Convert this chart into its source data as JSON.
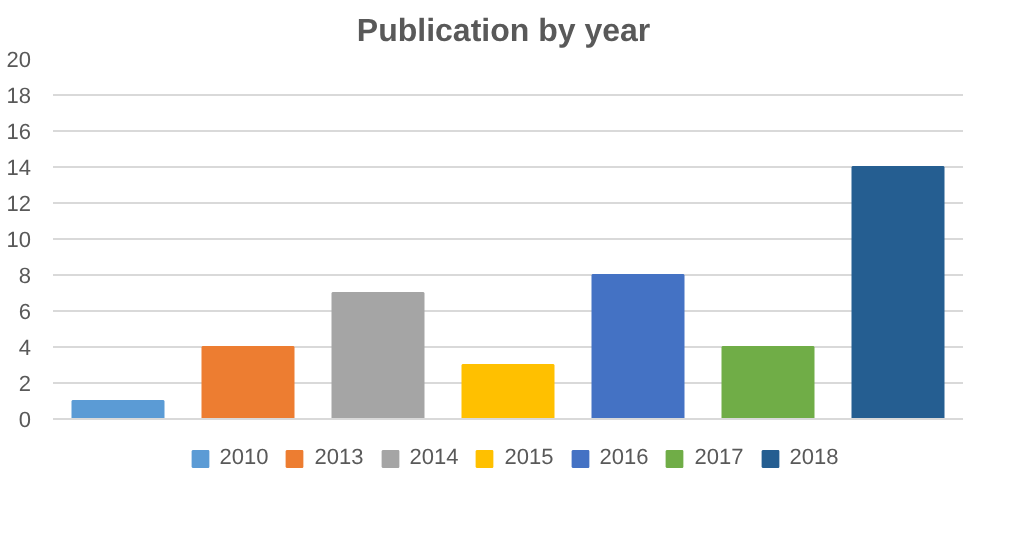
{
  "chart_data": {
    "type": "bar",
    "title": "Publication  by year",
    "categories": [
      null,
      null,
      null,
      null,
      null,
      null,
      null
    ],
    "series": [
      {
        "name": "2010",
        "color": "#5b9bd5",
        "values": [
          1,
          null,
          null,
          null,
          null,
          null,
          null
        ]
      },
      {
        "name": "2013",
        "color": "#ed7d31",
        "values": [
          null,
          4,
          null,
          null,
          null,
          null,
          null
        ]
      },
      {
        "name": "2014",
        "color": "#a5a5a5",
        "values": [
          null,
          null,
          7,
          null,
          null,
          null,
          null
        ]
      },
      {
        "name": "2015",
        "color": "#ffc000",
        "values": [
          null,
          null,
          null,
          3,
          null,
          null,
          null
        ]
      },
      {
        "name": "2016",
        "color": "#4472c4",
        "values": [
          null,
          null,
          null,
          null,
          8,
          null,
          null
        ]
      },
      {
        "name": "2017",
        "color": "#70ad47",
        "values": [
          null,
          null,
          null,
          null,
          null,
          4,
          null
        ]
      },
      {
        "name": "2018",
        "color": "#255e91",
        "values": [
          null,
          null,
          null,
          null,
          null,
          null,
          14
        ]
      }
    ],
    "ylim": [
      0,
      20
    ],
    "yticks": [
      0,
      2,
      4,
      6,
      8,
      10,
      12,
      14,
      16,
      18,
      20
    ],
    "grid": "y",
    "legend": "bottom"
  }
}
